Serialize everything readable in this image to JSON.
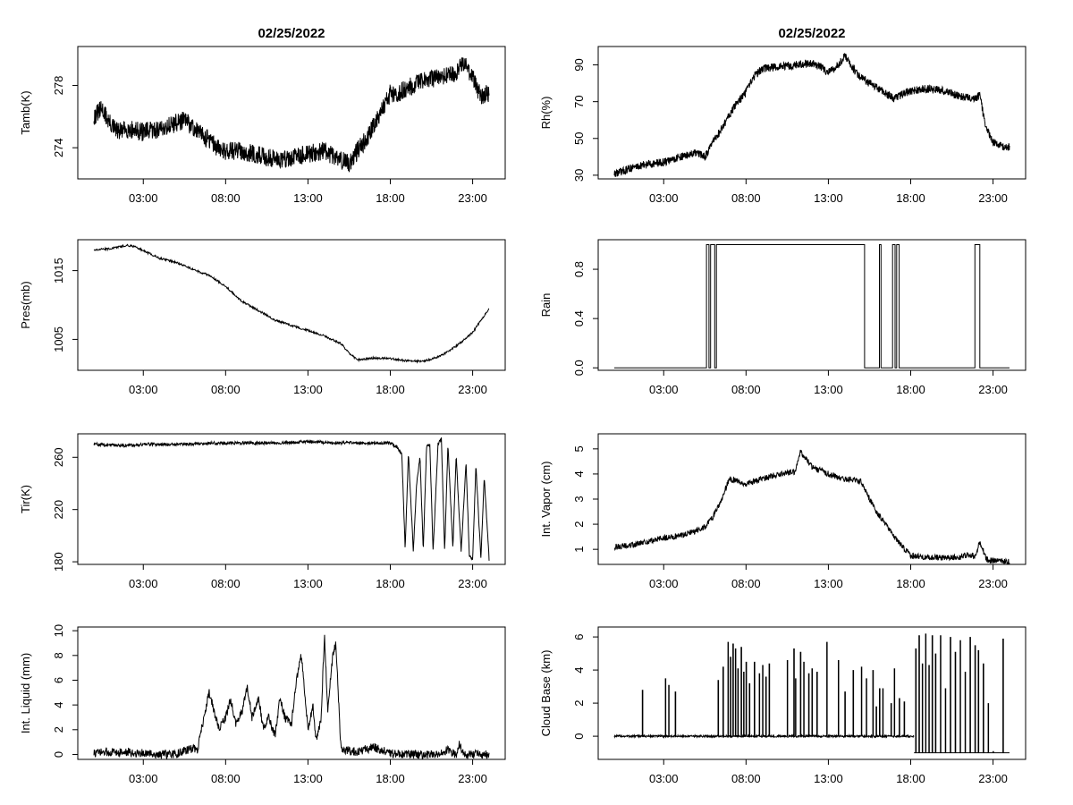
{
  "chart_data": [
    {
      "type": "line",
      "title": "02/25/2022",
      "ylabel": "Tamb(K)",
      "xlim": [
        0,
        24
      ],
      "ylim": [
        272.0,
        280.5
      ],
      "x_ticks": [
        "03:00",
        "08:00",
        "13:00",
        "18:00",
        "23:00"
      ],
      "x_tick_values": [
        3,
        8,
        13,
        18,
        23
      ],
      "y_ticks": [
        "274",
        "278"
      ],
      "y_tick_values": [
        274,
        278
      ],
      "series": [
        {
          "x": [
            0.0,
            0.5,
            1.0,
            1.5,
            2.0,
            3.0,
            4.0,
            5.0,
            5.5,
            6.0,
            7.0,
            7.5,
            8.0,
            9.0,
            10.0,
            11.0,
            12.0,
            12.5,
            13.0,
            14.0,
            15.0,
            15.5,
            16.0,
            16.5,
            17.0,
            17.5,
            18.0,
            18.5,
            19.0,
            20.0,
            21.0,
            22.0,
            22.5,
            23.0,
            23.5,
            24.0
          ],
          "y": [
            276.0,
            276.5,
            275.5,
            275.0,
            275.2,
            275.0,
            275.2,
            275.6,
            275.8,
            275.3,
            274.5,
            274.0,
            273.8,
            273.8,
            273.5,
            273.3,
            273.3,
            273.5,
            273.6,
            273.8,
            273.2,
            273.0,
            273.8,
            274.5,
            275.5,
            276.5,
            277.5,
            277.5,
            277.8,
            278.3,
            278.5,
            278.8,
            279.5,
            278.5,
            277.3,
            277.5
          ],
          "noise_amplitude": 0.6,
          "noise_samples": 1400
        }
      ]
    },
    {
      "type": "line",
      "title": "02/25/2022",
      "ylabel": "Rh(%)",
      "xlim": [
        0,
        24
      ],
      "ylim": [
        28,
        100
      ],
      "x_ticks": [
        "03:00",
        "08:00",
        "13:00",
        "18:00",
        "23:00"
      ],
      "x_tick_values": [
        3,
        8,
        13,
        18,
        23
      ],
      "y_ticks": [
        "30",
        "50",
        "70",
        "90"
      ],
      "y_tick_values": [
        30,
        50,
        70,
        90
      ],
      "series": [
        {
          "x": [
            0.0,
            0.5,
            1.0,
            2.0,
            3.0,
            4.0,
            5.0,
            5.5,
            6.0,
            6.5,
            7.0,
            7.5,
            8.0,
            8.5,
            9.0,
            10.0,
            11.0,
            12.0,
            12.5,
            13.0,
            13.5,
            14.0,
            14.5,
            15.0,
            15.5,
            16.0,
            17.0,
            18.0,
            19.0,
            20.0,
            21.0,
            22.0,
            22.2,
            22.5,
            23.0,
            23.5,
            24.0
          ],
          "y": [
            31,
            32,
            34,
            36,
            37,
            40,
            42,
            40,
            48,
            55,
            63,
            70,
            75,
            84,
            88,
            89,
            90,
            91,
            89,
            86,
            89,
            95,
            88,
            83,
            80,
            77,
            72,
            76,
            77,
            76,
            73,
            72,
            74,
            58,
            48,
            46,
            45
          ],
          "noise_amplitude": 2.2,
          "noise_samples": 1400
        }
      ]
    },
    {
      "type": "line",
      "ylabel": "Pres(mb)",
      "xlim": [
        0,
        24
      ],
      "ylim": [
        1000.5,
        1019.5
      ],
      "x_ticks": [
        "03:00",
        "08:00",
        "13:00",
        "18:00",
        "23:00"
      ],
      "x_tick_values": [
        3,
        8,
        13,
        18,
        23
      ],
      "y_ticks": [
        "1005",
        "1015"
      ],
      "y_tick_values": [
        1005,
        1015
      ],
      "series": [
        {
          "x": [
            0.0,
            1.0,
            2.0,
            2.5,
            3.0,
            4.0,
            5.0,
            6.0,
            7.0,
            8.0,
            9.0,
            10.0,
            11.0,
            12.0,
            13.0,
            14.0,
            15.0,
            15.5,
            16.0,
            17.0,
            18.0,
            19.0,
            20.0,
            21.0,
            22.0,
            23.0,
            24.0
          ],
          "y": [
            1018.0,
            1018.2,
            1018.7,
            1018.5,
            1017.9,
            1016.8,
            1016.2,
            1015.2,
            1014.3,
            1012.7,
            1010.5,
            1009.2,
            1007.8,
            1007.0,
            1006.3,
            1005.5,
            1004.4,
            1003.0,
            1002.0,
            1002.3,
            1002.2,
            1001.9,
            1001.8,
            1002.5,
            1004.0,
            1006.0,
            1009.5
          ],
          "noise_amplitude": 0.15,
          "noise_samples": 900
        }
      ]
    },
    {
      "type": "line",
      "ylabel": "Rain",
      "xlim": [
        0,
        24
      ],
      "ylim": [
        -0.02,
        1.04
      ],
      "x_ticks": [
        "03:00",
        "08:00",
        "13:00",
        "18:00",
        "23:00"
      ],
      "x_tick_values": [
        3,
        8,
        13,
        18,
        23
      ],
      "y_ticks": [
        "0.0",
        "0.4",
        "0.8"
      ],
      "y_tick_values": [
        0.0,
        0.4,
        0.8
      ],
      "step": true,
      "series": [
        {
          "x": [
            0.0,
            5.6,
            5.6,
            5.75,
            5.75,
            5.85,
            5.85,
            6.1,
            6.1,
            6.2,
            6.2,
            15.2,
            15.2,
            16.1,
            16.1,
            16.2,
            16.2,
            16.9,
            16.9,
            17.05,
            17.05,
            17.15,
            17.15,
            17.3,
            17.3,
            21.9,
            21.9,
            22.2,
            22.2,
            24.0
          ],
          "y": [
            0,
            0,
            1,
            1,
            0,
            0,
            1,
            1,
            0,
            0,
            1,
            1,
            0,
            0,
            1,
            1,
            0,
            0,
            1,
            1,
            0,
            0,
            1,
            1,
            0,
            0,
            1,
            1,
            0,
            0
          ]
        }
      ]
    },
    {
      "type": "line",
      "ylabel": "Tir(K)",
      "xlim": [
        0,
        24
      ],
      "ylim": [
        178,
        278
      ],
      "x_ticks": [
        "03:00",
        "08:00",
        "13:00",
        "18:00",
        "23:00"
      ],
      "x_tick_values": [
        3,
        8,
        13,
        18,
        23
      ],
      "y_ticks": [
        "180",
        "220",
        "260"
      ],
      "y_tick_values": [
        180,
        220,
        260
      ],
      "series": [
        {
          "x": [
            0.0,
            2.0,
            3.0,
            5.0,
            8.0,
            11.0,
            13.0,
            15.0,
            18.0,
            18.4,
            18.7,
            18.9,
            19.1,
            19.4,
            19.6,
            19.8,
            20.0,
            20.2,
            20.4,
            20.6,
            20.9,
            21.1,
            21.3,
            21.5,
            21.8,
            22.0,
            22.3,
            22.6,
            22.8,
            23.0,
            23.2,
            23.5,
            23.7,
            24.0
          ],
          "y": [
            270,
            269,
            270,
            270,
            271,
            271,
            272,
            271,
            271,
            268,
            262,
            190,
            263,
            188,
            240,
            260,
            189,
            268,
            270,
            188,
            270,
            274,
            188,
            270,
            190,
            262,
            188,
            256,
            185,
            182,
            254,
            182,
            245,
            182
          ],
          "noise_amplitude": 1.2,
          "noise_samples": 1100
        }
      ]
    },
    {
      "type": "line",
      "ylabel": "Int. Vapor (cm)",
      "xlim": [
        0,
        24
      ],
      "ylim": [
        0.4,
        5.6
      ],
      "x_ticks": [
        "03:00",
        "08:00",
        "13:00",
        "18:00",
        "23:00"
      ],
      "x_tick_values": [
        3,
        8,
        13,
        18,
        23
      ],
      "y_ticks": [
        "1",
        "2",
        "3",
        "4",
        "5"
      ],
      "y_tick_values": [
        1,
        2,
        3,
        4,
        5
      ],
      "series": [
        {
          "x": [
            0.0,
            1.0,
            2.0,
            3.0,
            4.0,
            5.0,
            5.5,
            6.0,
            6.5,
            7.0,
            7.5,
            8.0,
            9.0,
            10.0,
            11.0,
            11.3,
            12.0,
            13.0,
            14.0,
            15.0,
            15.5,
            16.0,
            16.5,
            17.0,
            17.5,
            18.0,
            19.0,
            20.0,
            21.0,
            21.5,
            21.9,
            22.2,
            22.6,
            23.0,
            24.0
          ],
          "y": [
            1.1,
            1.15,
            1.3,
            1.45,
            1.55,
            1.75,
            1.9,
            2.3,
            3.0,
            3.8,
            3.7,
            3.6,
            3.8,
            4.0,
            4.1,
            4.9,
            4.3,
            4.0,
            3.8,
            3.7,
            3.0,
            2.4,
            2.0,
            1.5,
            1.1,
            0.75,
            0.7,
            0.65,
            0.7,
            0.8,
            0.7,
            1.3,
            0.6,
            0.55,
            0.5
          ],
          "noise_amplitude": 0.12,
          "noise_samples": 1100
        }
      ]
    },
    {
      "type": "line",
      "ylabel": "Int. Liquid (mm)",
      "xlim": [
        0,
        24
      ],
      "ylim": [
        -0.4,
        10.3
      ],
      "x_ticks": [
        "03:00",
        "08:00",
        "13:00",
        "18:00",
        "23:00"
      ],
      "x_tick_values": [
        3,
        8,
        13,
        18,
        23
      ],
      "y_ticks": [
        "0",
        "2",
        "4",
        "6",
        "8",
        "10"
      ],
      "y_tick_values": [
        0,
        2,
        4,
        6,
        8,
        10
      ],
      "series": [
        {
          "x": [
            0.0,
            1.0,
            2.0,
            3.0,
            4.0,
            5.0,
            5.5,
            6.0,
            6.3,
            6.6,
            7.0,
            7.3,
            7.6,
            8.0,
            8.3,
            8.6,
            9.0,
            9.3,
            9.6,
            10.0,
            10.3,
            10.6,
            11.0,
            11.3,
            11.6,
            12.0,
            12.3,
            12.6,
            13.0,
            13.3,
            13.5,
            13.8,
            14.0,
            14.2,
            14.5,
            14.7,
            15.0,
            15.5,
            16.0,
            16.5,
            17.0,
            17.5,
            18.0,
            19.0,
            20.0,
            21.0,
            21.5,
            22.0,
            22.2,
            22.5,
            23.0,
            24.0
          ],
          "y": [
            0.1,
            0.2,
            0.15,
            0.1,
            0.0,
            0.0,
            0.3,
            0.5,
            0.4,
            2.5,
            5.0,
            3.5,
            2.0,
            3.0,
            4.5,
            2.5,
            3.5,
            5.5,
            3.0,
            4.5,
            2.0,
            3.0,
            1.5,
            4.5,
            3.0,
            2.5,
            6.0,
            8.0,
            2.0,
            4.0,
            1.0,
            3.0,
            9.8,
            3.5,
            8.0,
            9.0,
            0.5,
            0.3,
            0.2,
            0.4,
            0.6,
            0.3,
            0.1,
            0.0,
            0.0,
            0.0,
            0.4,
            0.0,
            0.8,
            0.0,
            0.0,
            0.0
          ],
          "noise_amplitude": 0.35,
          "noise_samples": 1100
        }
      ]
    },
    {
      "type": "line",
      "ylabel": "Cloud Base (km)",
      "xlim": [
        0,
        24
      ],
      "ylim": [
        -1.4,
        6.6
      ],
      "x_ticks": [
        "03:00",
        "08:00",
        "13:00",
        "18:00",
        "23:00"
      ],
      "x_tick_values": [
        3,
        8,
        13,
        18,
        23
      ],
      "y_ticks": [
        "0",
        "2",
        "4",
        "6"
      ],
      "y_tick_values": [
        0,
        2,
        4,
        6
      ],
      "baseline_ranges": [
        [
          0.0,
          18.2
        ]
      ],
      "floor_ranges": [
        [
          18.2,
          24.0
        ]
      ],
      "baseline": 0.0,
      "floor": -1.0,
      "spikes": [
        [
          1.7,
          2.8
        ],
        [
          3.1,
          3.5
        ],
        [
          3.3,
          3.1
        ],
        [
          3.7,
          2.7
        ],
        [
          6.3,
          3.4
        ],
        [
          6.6,
          4.2
        ],
        [
          6.9,
          5.7
        ],
        [
          7.05,
          4.8
        ],
        [
          7.2,
          5.6
        ],
        [
          7.35,
          5.3
        ],
        [
          7.5,
          4.1
        ],
        [
          7.7,
          5.4
        ],
        [
          7.85,
          3.9
        ],
        [
          8.0,
          4.5
        ],
        [
          8.2,
          3.2
        ],
        [
          8.5,
          4.5
        ],
        [
          8.8,
          3.8
        ],
        [
          9.0,
          4.3
        ],
        [
          9.2,
          3.6
        ],
        [
          9.4,
          4.4
        ],
        [
          10.5,
          4.6
        ],
        [
          10.9,
          5.3
        ],
        [
          11.0,
          3.5
        ],
        [
          11.3,
          5.1
        ],
        [
          11.5,
          4.5
        ],
        [
          11.8,
          3.8
        ],
        [
          12.0,
          4.1
        ],
        [
          12.3,
          3.9
        ],
        [
          12.9,
          5.7
        ],
        [
          13.6,
          4.6
        ],
        [
          14.0,
          2.7
        ],
        [
          14.5,
          4.0
        ],
        [
          15.0,
          4.2
        ],
        [
          15.3,
          3.5
        ],
        [
          15.7,
          4.0
        ],
        [
          15.9,
          1.8
        ],
        [
          16.1,
          2.9
        ],
        [
          16.3,
          2.9
        ],
        [
          16.8,
          2.0
        ],
        [
          17.0,
          4.1
        ],
        [
          17.3,
          2.3
        ],
        [
          17.6,
          2.1
        ],
        [
          18.3,
          5.3
        ],
        [
          18.5,
          6.1
        ],
        [
          18.7,
          4.4
        ],
        [
          18.9,
          6.2
        ],
        [
          19.1,
          4.3
        ],
        [
          19.3,
          6.1
        ],
        [
          19.5,
          5.0
        ],
        [
          19.8,
          6.1
        ],
        [
          20.1,
          2.9
        ],
        [
          20.4,
          6.0
        ],
        [
          20.7,
          5.1
        ],
        [
          21.0,
          5.8
        ],
        [
          21.3,
          3.9
        ],
        [
          21.6,
          6.0
        ],
        [
          21.9,
          5.5
        ],
        [
          22.1,
          5.2
        ],
        [
          22.4,
          4.4
        ],
        [
          22.7,
          2.0
        ],
        [
          23.0,
          -0.9
        ],
        [
          23.6,
          5.9
        ]
      ],
      "series": [
        {
          "x": [],
          "y": []
        }
      ]
    }
  ]
}
